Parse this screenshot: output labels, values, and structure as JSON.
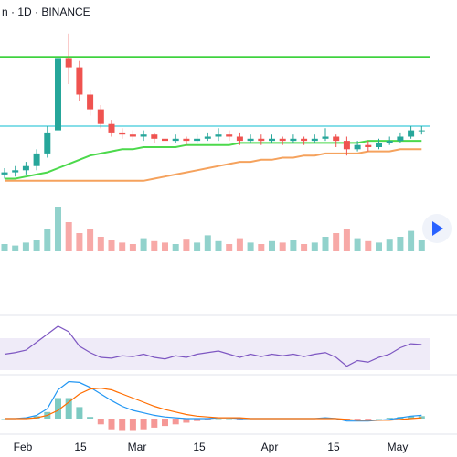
{
  "chart_data": {
    "type": "candlestick",
    "title": "n · 1D · BINANCE",
    "x_labels": [
      "Feb",
      "15",
      "Mar",
      "15",
      "Apr",
      "15",
      "May"
    ],
    "ylim": [
      0,
      100
    ],
    "open": [
      17,
      18,
      19,
      21,
      27,
      38,
      72,
      68,
      55,
      48,
      41,
      37,
      36,
      35,
      36,
      34,
      33,
      34,
      33,
      34,
      35,
      36,
      35,
      33,
      34,
      33,
      34,
      33,
      34,
      33,
      34,
      35,
      33,
      29,
      31,
      30,
      32,
      33,
      35,
      38
    ],
    "high": [
      20,
      21,
      23,
      29,
      40,
      87,
      84,
      71,
      57,
      50,
      43,
      39,
      38,
      38,
      37,
      36,
      36,
      35,
      36,
      37,
      39,
      38,
      37,
      36,
      36,
      36,
      35,
      36,
      35,
      36,
      39,
      36,
      35,
      33,
      33,
      34,
      35,
      37,
      40,
      40
    ],
    "low": [
      15,
      16,
      17,
      19,
      25,
      36,
      60,
      52,
      45,
      39,
      35,
      34,
      33,
      33,
      32,
      31,
      32,
      31,
      32,
      33,
      33,
      33,
      31,
      32,
      31,
      32,
      31,
      32,
      31,
      32,
      33,
      30,
      26,
      28,
      28,
      29,
      31,
      32,
      34,
      36
    ],
    "close": [
      18,
      19,
      21,
      27,
      37,
      72,
      68,
      55,
      48,
      41,
      37,
      36,
      35,
      36,
      34,
      33,
      34,
      33,
      34,
      35,
      36,
      35,
      33,
      34,
      33,
      34,
      33,
      34,
      33,
      34,
      35,
      33,
      29,
      31,
      30,
      32,
      33,
      35,
      38,
      38
    ],
    "up_color": "#26a69a",
    "down_color": "#ef5350",
    "ma_series": [
      {
        "color": "#4cd94c",
        "values": [
          15,
          15,
          16,
          17,
          18,
          20,
          22,
          24,
          26,
          27,
          28,
          29,
          29,
          30,
          30,
          30,
          30,
          31,
          31,
          31,
          31,
          31,
          32,
          32,
          32,
          32,
          32,
          32,
          32,
          32,
          32,
          32,
          32,
          32,
          33,
          33,
          33,
          33,
          33,
          33
        ]
      },
      {
        "color": "#f5a25d",
        "values": [
          14,
          14,
          14,
          14,
          14,
          14,
          14,
          14,
          14,
          14,
          14,
          14,
          14,
          14,
          15,
          16,
          17,
          18,
          19,
          20,
          21,
          22,
          23,
          23,
          24,
          24,
          25,
          25,
          26,
          26,
          27,
          27,
          27,
          27,
          28,
          28,
          28,
          29,
          29,
          29
        ]
      }
    ],
    "levels": [
      {
        "value": 73,
        "color": "#22cc22"
      },
      {
        "value": 40,
        "color": "#5fd3e0"
      }
    ],
    "volume": [
      10,
      8,
      12,
      15,
      30,
      60,
      40,
      25,
      30,
      20,
      15,
      12,
      10,
      18,
      14,
      12,
      10,
      16,
      12,
      22,
      14,
      10,
      18,
      12,
      10,
      14,
      12,
      15,
      10,
      12,
      20,
      25,
      30,
      18,
      14,
      12,
      16,
      20,
      28,
      15
    ],
    "rsi": [
      50,
      52,
      55,
      65,
      75,
      85,
      78,
      60,
      52,
      46,
      45,
      48,
      47,
      50,
      46,
      44,
      48,
      46,
      50,
      52,
      54,
      50,
      46,
      50,
      47,
      50,
      48,
      50,
      47,
      50,
      52,
      46,
      35,
      42,
      40,
      46,
      50,
      58,
      63,
      62
    ],
    "rsi_band": [
      30,
      70
    ],
    "macd": [
      0,
      0,
      1,
      4,
      12,
      35,
      45,
      44,
      38,
      30,
      22,
      15,
      10,
      7,
      4,
      2,
      1,
      0,
      0,
      0,
      1,
      1,
      0,
      0,
      0,
      0,
      0,
      0,
      0,
      0,
      1,
      0,
      -3,
      -3,
      -3,
      -2,
      -1,
      1,
      3,
      4
    ],
    "signal": [
      0,
      0,
      0,
      1,
      4,
      10,
      20,
      30,
      36,
      37,
      35,
      30,
      25,
      20,
      15,
      11,
      8,
      5,
      3,
      2,
      1,
      1,
      1,
      0,
      0,
      0,
      0,
      0,
      0,
      0,
      0,
      0,
      -1,
      -2,
      -2,
      -2,
      -2,
      -1,
      0,
      1
    ],
    "histogram": [
      0,
      0,
      1,
      3,
      8,
      25,
      25,
      14,
      2,
      -7,
      -13,
      -15,
      -15,
      -13,
      -11,
      -9,
      -7,
      -5,
      -3,
      -2,
      0,
      0,
      -1,
      0,
      0,
      0,
      0,
      0,
      0,
      0,
      1,
      0,
      -2,
      -1,
      -1,
      0,
      1,
      2,
      3,
      3
    ]
  }
}
